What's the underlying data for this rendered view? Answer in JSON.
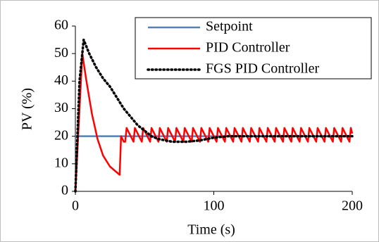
{
  "chart_data": {
    "type": "line",
    "xlabel": "Time (s)",
    "ylabel": "PV (%)",
    "xlim": [
      0,
      200
    ],
    "xticks": [
      0,
      100,
      200
    ],
    "ylim": [
      0,
      60
    ],
    "yticks": [
      0,
      10,
      20,
      30,
      40,
      50,
      60
    ],
    "grid": false,
    "legend": "upper right",
    "series": [
      {
        "name": "Setpoint",
        "color": "#4f81bd",
        "style": "solid",
        "x": [
          0,
          200
        ],
        "values": [
          20,
          20
        ]
      },
      {
        "name": "PID Controller",
        "color": "#ff0000",
        "style": "solid",
        "x": [
          0,
          5,
          8,
          12,
          16,
          20,
          25,
          32,
          33,
          35,
          36,
          37,
          42,
          43,
          48,
          49,
          54,
          55,
          60,
          61,
          66,
          67,
          72,
          73,
          78,
          79,
          84,
          85,
          90,
          91,
          96,
          97,
          102,
          103,
          108,
          109,
          114,
          115,
          120,
          121,
          126,
          127,
          132,
          133,
          138,
          139,
          144,
          145,
          150,
          151,
          156,
          157,
          162,
          163,
          168,
          169,
          174,
          175,
          180,
          181,
          186,
          187,
          192,
          193,
          198,
          199,
          200
        ],
        "values": [
          0,
          50,
          40,
          28,
          19,
          13,
          9,
          6,
          20,
          18,
          18,
          23,
          18,
          23,
          18,
          23,
          18,
          23,
          18,
          23,
          18,
          23,
          18,
          23,
          18,
          23,
          18,
          23,
          18,
          23,
          18,
          23,
          18,
          23,
          18,
          23,
          18,
          23,
          18,
          23,
          18,
          23,
          18,
          23,
          18,
          23,
          18,
          23,
          18,
          23,
          18,
          23,
          18,
          23,
          18,
          23,
          18,
          23,
          18,
          23,
          18,
          23,
          18,
          23,
          18,
          23,
          21
        ]
      },
      {
        "name": "FGS PID Controller",
        "color": "#000000",
        "style": "dotted",
        "x": [
          0,
          3,
          6,
          10,
          15,
          20,
          25,
          30,
          35,
          40,
          45,
          50,
          55,
          60,
          65,
          70,
          75,
          80,
          90,
          100,
          110,
          120,
          140,
          160,
          180,
          200
        ],
        "values": [
          0,
          40,
          55,
          50,
          45,
          41,
          38,
          34,
          30,
          27,
          24,
          22,
          20,
          19,
          18.5,
          18,
          18,
          18,
          18.5,
          19.5,
          20,
          20,
          20,
          20,
          20,
          20
        ]
      }
    ]
  }
}
